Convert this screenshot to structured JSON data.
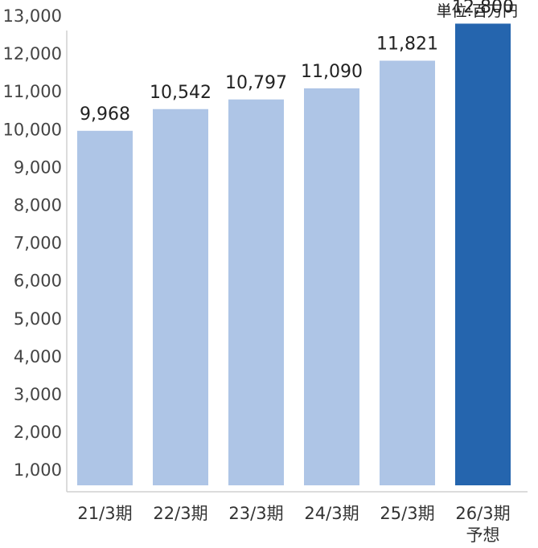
{
  "chart_data": {
    "type": "bar",
    "unit_label": "単位:百万円",
    "categories": [
      "21/3期",
      "22/3期",
      "23/3期",
      "24/3期",
      "25/3期",
      "26/3期"
    ],
    "category_sublabels": [
      "",
      "",
      "",
      "",
      "",
      "予想"
    ],
    "values": [
      9968,
      10542,
      10797,
      11090,
      11821,
      12800
    ],
    "data_labels": [
      "9,968",
      "10,542",
      "10,797",
      "11,090",
      "11,821",
      "12,800"
    ],
    "highlight_index": 5,
    "colors": {
      "bar": "#aec5e6",
      "bar_highlight": "#2565ae",
      "axis": "#d0d0d0"
    },
    "yticks": [
      1000,
      2000,
      3000,
      4000,
      5000,
      6000,
      7000,
      8000,
      9000,
      10000,
      11000,
      12000,
      13000
    ],
    "ytick_labels": [
      "1,000",
      "2,000",
      "3,000",
      "4,000",
      "5,000",
      "6,000",
      "7,000",
      "8,000",
      "9,000",
      "10,000",
      "11,000",
      "12,000",
      "13,000"
    ],
    "ylim": [
      600,
      13000
    ],
    "grid": false,
    "legend": "none"
  }
}
